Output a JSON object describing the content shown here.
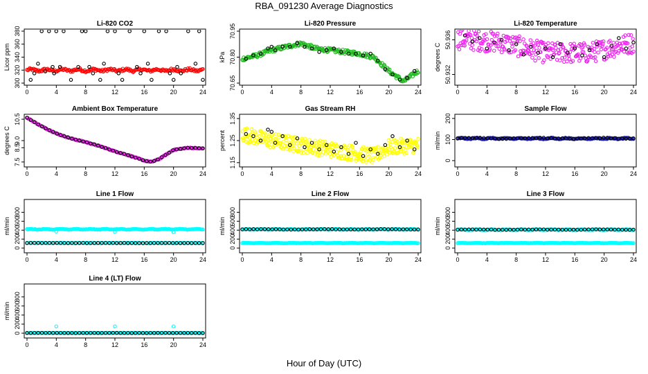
{
  "page": {
    "title": "RBA_091230  Average Diagnostics",
    "xlabel": "Hour of Day (UTC)"
  },
  "colors": {
    "red": "#ff0000",
    "green": "#22bb22",
    "magenta": "#ee22ee",
    "yellow": "#ffff00",
    "blue": "#1a1aaa",
    "cyan": "#00ffff",
    "black": "#000000"
  },
  "chart_data": [
    {
      "type": "scatter",
      "title": "Li-820 CO2",
      "xlabel": "",
      "ylabel": "Licor ppm",
      "xlim": [
        0,
        24
      ],
      "ylim": [
        300,
        380
      ],
      "xticks": [
        "0",
        "4",
        "8",
        "12",
        "16",
        "20",
        "24"
      ],
      "yticks": [
        "300",
        "320",
        "340",
        "360",
        "380"
      ],
      "grid": false,
      "series": [
        {
          "color": "red",
          "generator": "flat",
          "params": {
            "count": 190,
            "base": 320,
            "amp": 1.2,
            "noise": 2
          }
        },
        {
          "color": "black",
          "generator": "points",
          "x": [
            0.5,
            1.0,
            1.5,
            2.0,
            2.5,
            3.0,
            3.5,
            3.7,
            4.0,
            4.5,
            5.0,
            6.0,
            7.0,
            7.5,
            8.0,
            8.5,
            9.0,
            10.0,
            10.5,
            11.0,
            12.0,
            12.5,
            13.0,
            14.0,
            15.0,
            15.5,
            16.0,
            16.5,
            17.0,
            18.0,
            19.0,
            19.5,
            20.0,
            20.5,
            21.0,
            22.0,
            23.0,
            23.5,
            24.0
          ],
          "y": [
            305,
            315,
            330,
            380,
            318,
            380,
            325,
            315,
            380,
            325,
            380,
            305,
            325,
            380,
            380,
            325,
            315,
            305,
            330,
            380,
            380,
            315,
            305,
            380,
            325,
            315,
            380,
            330,
            305,
            380,
            380,
            315,
            305,
            325,
            315,
            380,
            330,
            380,
            305
          ]
        }
      ]
    },
    {
      "type": "scatter",
      "title": "Li-820 Pressure",
      "xlabel": "",
      "ylabel": "kPa",
      "xlim": [
        0,
        24
      ],
      "ylim": [
        70.65,
        70.95
      ],
      "xticks": [
        "0",
        "4",
        "8",
        "12",
        "16",
        "20",
        "24"
      ],
      "yticks": [
        "70.65",
        "70.80",
        "70.95"
      ],
      "grid": false,
      "series": [
        {
          "color": "green",
          "generator": "curve",
          "params": {
            "count": 260,
            "kx": [
              0,
              2,
              4,
              6,
              8,
              10,
              12,
              14,
              16,
              18,
              20,
              22,
              24
            ],
            "ky": [
              70.79,
              70.81,
              70.84,
              70.86,
              70.88,
              70.85,
              70.84,
              70.83,
              70.82,
              70.8,
              70.72,
              70.66,
              70.72
            ],
            "noise": 0.012
          }
        },
        {
          "color": "black",
          "generator": "points",
          "x": [
            0.5,
            1.5,
            2.5,
            3.5,
            4.0,
            4.5,
            5.5,
            6.5,
            7.5,
            8.5,
            9.5,
            10.5,
            11.5,
            12.5,
            13.5,
            14.5,
            15.5,
            16.5,
            17.5,
            18.5,
            19.5,
            20.5,
            21.5,
            22.5,
            23.5
          ],
          "y": [
            70.79,
            70.81,
            70.82,
            70.85,
            70.86,
            70.84,
            70.86,
            70.86,
            70.88,
            70.86,
            70.85,
            70.83,
            70.84,
            70.85,
            70.83,
            70.82,
            70.82,
            70.81,
            70.82,
            70.78,
            70.73,
            70.7,
            70.67,
            70.68,
            70.72
          ]
        }
      ]
    },
    {
      "type": "scatter",
      "title": "Li-820 Temperature",
      "xlabel": "",
      "ylabel": "degrees C",
      "xlim": [
        0,
        24
      ],
      "ylim": [
        50.931,
        50.937
      ],
      "xticks": [
        "0",
        "4",
        "8",
        "12",
        "16",
        "20",
        "24"
      ],
      "yticks": [
        "50.932",
        "50.936"
      ],
      "grid": false,
      "series": [
        {
          "color": "magenta",
          "generator": "curve",
          "params": {
            "count": 300,
            "kx": [
              0,
              6,
              12,
              18,
              24
            ],
            "ky": [
              50.9361,
              50.9357,
              50.9345,
              50.9345,
              50.9357
            ],
            "noise": 0.0012
          }
        },
        {
          "color": "black",
          "generator": "points",
          "x": [
            1,
            2,
            3,
            4,
            5,
            6,
            7,
            8,
            9,
            10,
            11,
            12,
            13,
            14,
            15,
            16,
            17,
            18,
            19,
            20,
            21,
            22,
            23,
            24
          ],
          "y": [
            50.9365,
            50.9358,
            50.9362,
            50.935,
            50.9357,
            50.936,
            50.9348,
            50.9355,
            50.9343,
            50.9352,
            50.9345,
            50.935,
            50.934,
            50.9355,
            50.9345,
            50.935,
            50.9342,
            50.9348,
            50.9355,
            50.934,
            50.9353,
            50.9362,
            50.935,
            50.9357
          ]
        }
      ]
    },
    {
      "type": "scatter",
      "title": "Ambient Box Temperature",
      "xlabel": "",
      "ylabel": "degrees C",
      "xlim": [
        0,
        24
      ],
      "ylim": [
        7.3,
        10.7
      ],
      "xticks": [
        "0",
        "4",
        "8",
        "12",
        "16",
        "20",
        "24"
      ],
      "yticks": [
        "7.5",
        "8.5",
        "9.0",
        "10.5"
      ],
      "grid": false,
      "series": [
        {
          "color": "magenta",
          "generator": "curve",
          "params": {
            "count": 240,
            "kx": [
              0,
              2,
              4,
              6,
              8,
              10,
              12,
              14,
              16,
              17,
              18,
              20,
              22,
              24
            ],
            "ky": [
              10.6,
              10.0,
              9.5,
              9.15,
              8.9,
              8.6,
              8.25,
              7.95,
              7.6,
              7.5,
              7.7,
              8.35,
              8.5,
              8.45
            ],
            "noise": 0.03
          }
        },
        {
          "color": "black",
          "generator": "curve",
          "params": {
            "count": 48,
            "kx": [
              0,
              2,
              4,
              6,
              8,
              10,
              12,
              14,
              16,
              17,
              18,
              20,
              22,
              24
            ],
            "ky": [
              10.6,
              10.0,
              9.5,
              9.15,
              8.9,
              8.6,
              8.25,
              7.95,
              7.6,
              7.5,
              7.7,
              8.35,
              8.5,
              8.45
            ],
            "noise": 0.01
          }
        }
      ]
    },
    {
      "type": "scatter",
      "title": "Gas Stream RH",
      "xlabel": "",
      "ylabel": "percent",
      "xlim": [
        0,
        24
      ],
      "ylim": [
        1.14,
        1.36
      ],
      "xticks": [
        "0",
        "4",
        "8",
        "12",
        "16",
        "20",
        "24"
      ],
      "yticks": [
        "1.15",
        "1.25",
        "1.35"
      ],
      "grid": false,
      "series": [
        {
          "color": "yellow",
          "generator": "curve",
          "params": {
            "count": 360,
            "kx": [
              0,
              4,
              8,
              12,
              16,
              18,
              20,
              24
            ],
            "ky": [
              1.28,
              1.25,
              1.23,
              1.21,
              1.19,
              1.18,
              1.22,
              1.23
            ],
            "noise": 0.035
          }
        },
        {
          "color": "black",
          "generator": "points",
          "x": [
            0.5,
            1.5,
            2.5,
            3.5,
            4.0,
            4.5,
            5.5,
            6.5,
            7.5,
            8.5,
            9.5,
            10.5,
            11.5,
            12.5,
            13.5,
            14.5,
            15.5,
            16.5,
            17.5,
            18.5,
            19.5,
            20.5,
            21.5,
            22.5,
            23.5
          ],
          "y": [
            1.28,
            1.27,
            1.25,
            1.3,
            1.29,
            1.24,
            1.27,
            1.23,
            1.26,
            1.22,
            1.24,
            1.21,
            1.23,
            1.2,
            1.22,
            1.19,
            1.24,
            1.18,
            1.21,
            1.19,
            1.23,
            1.27,
            1.22,
            1.25,
            1.21
          ]
        }
      ]
    },
    {
      "type": "scatter",
      "title": "Sample Flow",
      "xlabel": "",
      "ylabel": "ml/min",
      "xlim": [
        0,
        24
      ],
      "ylim": [
        -20,
        210
      ],
      "xticks": [
        "0",
        "4",
        "8",
        "12",
        "16",
        "20",
        "24"
      ],
      "yticks": [
        "0",
        "100",
        "200"
      ],
      "grid": false,
      "series": [
        {
          "color": "blue",
          "generator": "flat",
          "params": {
            "count": 200,
            "base": 105,
            "amp": 2,
            "noise": 2
          }
        },
        {
          "color": "black",
          "generator": "flat",
          "params": {
            "count": 48,
            "base": 106,
            "amp": 2,
            "noise": 1.5
          }
        }
      ]
    },
    {
      "type": "scatter",
      "title": "Line 1 Flow",
      "xlabel": "",
      "ylabel": "ml/min",
      "xlim": [
        0,
        24
      ],
      "ylim": [
        -60,
        1040
      ],
      "xticks": [
        "0",
        "4",
        "8",
        "12",
        "16",
        "20",
        "24"
      ],
      "yticks": [
        "0",
        "200",
        "400",
        "600",
        "800"
      ],
      "grid": false,
      "series": [
        {
          "color": "cyan",
          "generator": "flat",
          "params": {
            "count": 200,
            "base": 420,
            "amp": 6,
            "noise": 5
          }
        },
        {
          "color": "cyan",
          "generator": "flat",
          "params": {
            "count": 120,
            "base": 115,
            "amp": 2,
            "noise": 3
          }
        },
        {
          "color": "black",
          "generator": "flat",
          "params": {
            "count": 48,
            "base": 112,
            "amp": 1,
            "noise": 2
          }
        },
        {
          "color": "cyan",
          "generator": "points",
          "x": [
            4,
            12,
            20
          ],
          "y": [
            370,
            360,
            355
          ]
        }
      ]
    },
    {
      "type": "scatter",
      "title": "Line 2 Flow",
      "xlabel": "",
      "ylabel": "ml/min",
      "xlim": [
        0,
        24
      ],
      "ylim": [
        -60,
        1040
      ],
      "xticks": [
        "0",
        "4",
        "8",
        "12",
        "16",
        "20",
        "24"
      ],
      "yticks": [
        "0",
        "200",
        "400",
        "600",
        "800"
      ],
      "grid": false,
      "series": [
        {
          "color": "cyan",
          "generator": "flat",
          "params": {
            "count": 200,
            "base": 418,
            "amp": 5,
            "noise": 4
          }
        },
        {
          "color": "cyan",
          "generator": "flat",
          "params": {
            "count": 200,
            "base": 112,
            "amp": 3,
            "noise": 3
          }
        },
        {
          "color": "black",
          "generator": "flat",
          "params": {
            "count": 48,
            "base": 418,
            "amp": 4,
            "noise": 3
          }
        }
      ]
    },
    {
      "type": "scatter",
      "title": "Line 3 Flow",
      "xlabel": "",
      "ylabel": "ml/min",
      "xlim": [
        0,
        24
      ],
      "ylim": [
        -60,
        1040
      ],
      "xticks": [
        "0",
        "4",
        "8",
        "12",
        "16",
        "20",
        "24"
      ],
      "yticks": [
        "0",
        "200",
        "400",
        "600",
        "800"
      ],
      "grid": false,
      "series": [
        {
          "color": "cyan",
          "generator": "flat",
          "params": {
            "count": 200,
            "base": 412,
            "amp": 5,
            "noise": 4
          }
        },
        {
          "color": "cyan",
          "generator": "flat",
          "params": {
            "count": 200,
            "base": 112,
            "amp": 3,
            "noise": 3
          }
        },
        {
          "color": "black",
          "generator": "flat",
          "params": {
            "count": 48,
            "base": 412,
            "amp": 4,
            "noise": 3
          }
        }
      ]
    },
    {
      "type": "scatter",
      "title": "Line 4 (LT) Flow",
      "xlabel": "",
      "ylabel": "ml/min",
      "xlim": [
        0,
        24
      ],
      "ylim": [
        -60,
        1040
      ],
      "xticks": [
        "0",
        "4",
        "8",
        "12",
        "16",
        "20",
        "24"
      ],
      "yticks": [
        "0",
        "200",
        "400",
        "600",
        "800"
      ],
      "grid": false,
      "series": [
        {
          "color": "cyan",
          "generator": "flat",
          "params": {
            "count": 200,
            "base": 5,
            "amp": 1,
            "noise": 2
          }
        },
        {
          "color": "black",
          "generator": "flat",
          "params": {
            "count": 48,
            "base": 5,
            "amp": 1,
            "noise": 1.5
          }
        },
        {
          "color": "cyan",
          "generator": "points",
          "x": [
            4,
            12,
            20
          ],
          "y": [
            150,
            150,
            150
          ]
        }
      ]
    }
  ]
}
